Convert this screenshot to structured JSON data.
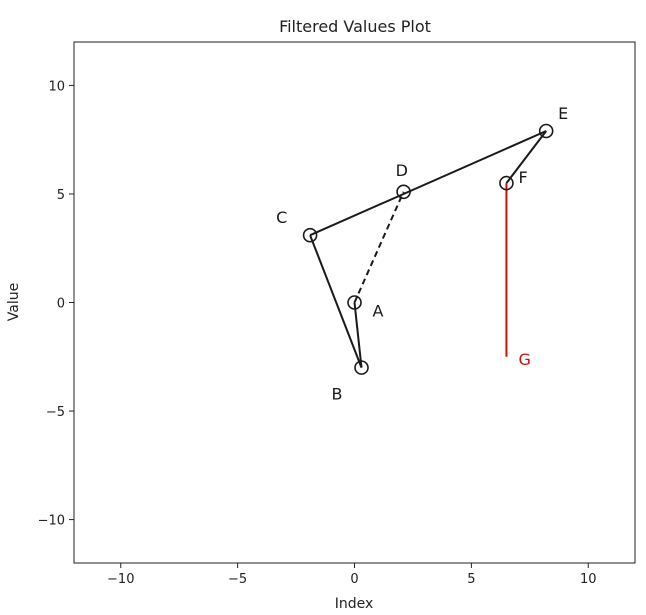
{
  "chart_data": {
    "type": "line",
    "title": "Filtered Values Plot",
    "xlabel": "Index",
    "ylabel": "Value",
    "xlim": [
      -12,
      12
    ],
    "ylim": [
      -12,
      12
    ],
    "xticks": [
      -10,
      -5,
      0,
      5,
      10
    ],
    "yticks": [
      -10,
      -5,
      0,
      5,
      10
    ],
    "xtick_labels": [
      "−10",
      "−5",
      "0",
      "5",
      "10"
    ],
    "ytick_labels": [
      "−10",
      "−5",
      "0",
      "5",
      "10"
    ],
    "grid": false,
    "points": [
      {
        "label": "A",
        "x": 0.0,
        "y": 0.0
      },
      {
        "label": "B",
        "x": 0.3,
        "y": -3.0
      },
      {
        "label": "C",
        "x": -1.9,
        "y": 3.1
      },
      {
        "label": "D",
        "x": 2.1,
        "y": 5.1
      },
      {
        "label": "E",
        "x": 8.2,
        "y": 7.9
      },
      {
        "label": "F",
        "x": 6.5,
        "y": 5.5
      }
    ],
    "segments": [
      {
        "from": "A",
        "to": "B",
        "style": "solid",
        "color": "#1a1a1a"
      },
      {
        "from": "B",
        "to": "C",
        "style": "solid",
        "color": "#1a1a1a"
      },
      {
        "from": "C",
        "to": "E",
        "style": "solid",
        "color": "#1a1a1a"
      },
      {
        "from": "E",
        "to": "F",
        "style": "solid",
        "color": "#1a1a1a"
      },
      {
        "from": "A",
        "to": "D",
        "style": "dashed",
        "color": "#1a1a1a"
      }
    ],
    "vertical_line": {
      "label": "G",
      "x": 6.5,
      "y_top": 5.5,
      "y_bottom": -2.5,
      "color": "#cc1111"
    },
    "marker_color": "#1a1a1a",
    "label_color": "#1a1a1a"
  }
}
